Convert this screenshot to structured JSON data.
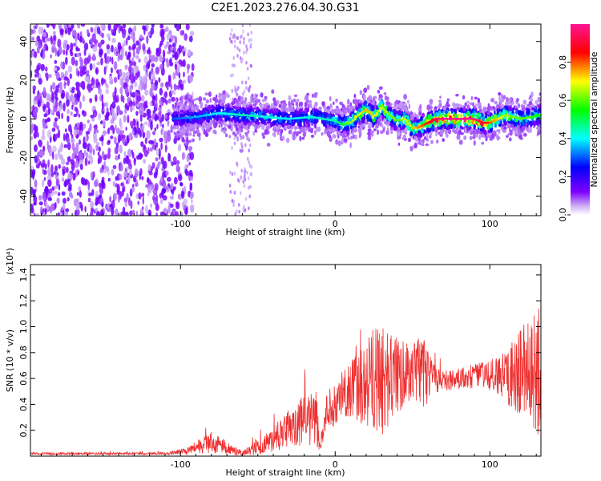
{
  "figure": {
    "title": "C2E1.2023.276.04.30.G31"
  },
  "chart_data": [
    {
      "type": "heatmap",
      "title": "C2E1.2023.276.04.30.G31",
      "xlabel": "Height of straight line (km)",
      "ylabel": "Frequency (Hz)",
      "xlim": [
        -197,
        133
      ],
      "ylim": [
        -50,
        49
      ],
      "xticks": [
        -100,
        0,
        100
      ],
      "yticks": [
        -40,
        -20,
        0,
        20,
        40
      ],
      "grid": false,
      "colorbar": {
        "label": "Normalized spectral amplitude",
        "range": [
          0.0,
          1.0
        ],
        "ticks": [
          0.0,
          0.2,
          0.4,
          0.6,
          0.8
        ],
        "colormap": [
          "#ffffff",
          "#7f00ff",
          "#0000ff",
          "#00ffff",
          "#00ff00",
          "#ffff00",
          "#ff0000",
          "#ff1493"
        ]
      },
      "ridge_frequency": {
        "x": [
          -105,
          -90,
          -75,
          -60,
          -45,
          -30,
          -15,
          0,
          5,
          10,
          15,
          20,
          25,
          30,
          35,
          40,
          45,
          50,
          55,
          60,
          65,
          70,
          80,
          90,
          95,
          100,
          110,
          120,
          133
        ],
        "y": [
          0,
          1,
          3,
          2,
          1,
          0,
          1,
          -1,
          -3,
          -2,
          2,
          5,
          1,
          6,
          2,
          -1,
          0,
          -5,
          -4,
          -2,
          0,
          0,
          0,
          0,
          -2,
          -2,
          2,
          0,
          2
        ]
      },
      "band_strength": {
        "x": [
          -105,
          -75,
          -60,
          -30,
          0,
          10,
          20,
          40,
          60,
          70,
          90,
          100,
          110,
          133
        ],
        "v": [
          0.25,
          0.35,
          0.4,
          0.35,
          0.4,
          0.6,
          0.7,
          0.55,
          0.8,
          0.95,
          0.95,
          0.75,
          0.6,
          0.5
        ]
      },
      "noise_region_x": [
        -197,
        -100
      ]
    },
    {
      "type": "line",
      "title": "",
      "xlabel": "Height of straight line (km)",
      "ylabel": "SNR (10 * v/v)",
      "y_multiplier": "(x10⁴)",
      "xlim": [
        -197,
        133
      ],
      "ylim": [
        0,
        1.48
      ],
      "xticks": [
        -100,
        0,
        100
      ],
      "yticks": [
        0.2,
        0.4,
        0.6,
        0.8,
        1.0,
        1.2,
        1.4
      ],
      "grid": false,
      "series": [
        {
          "color": "#ee3030",
          "envelope": {
            "x": [
              -197,
              -110,
              -95,
              -85,
              -80,
              -70,
              -60,
              -50,
              -40,
              -30,
              -20,
              -12,
              -10,
              -5,
              0,
              5,
              10,
              15,
              20,
              25,
              30,
              40,
              50,
              55,
              60,
              65,
              70,
              80,
              90,
              100,
              110,
              120,
              125,
              130,
              133
            ],
            "base": [
              0.02,
              0.02,
              0.04,
              0.09,
              0.11,
              0.07,
              0.02,
              0.07,
              0.13,
              0.22,
              0.28,
              0.3,
              0.05,
              0.38,
              0.42,
              0.48,
              0.5,
              0.52,
              0.55,
              0.6,
              0.6,
              0.62,
              0.65,
              0.65,
              0.62,
              0.58,
              0.58,
              0.6,
              0.62,
              0.62,
              0.62,
              0.64,
              0.65,
              0.66,
              0.65
            ],
            "amp": [
              0.01,
              0.01,
              0.03,
              0.07,
              0.09,
              0.05,
              0.02,
              0.06,
              0.1,
              0.15,
              0.2,
              0.22,
              0.04,
              0.14,
              0.2,
              0.18,
              0.22,
              0.3,
              0.35,
              0.4,
              0.45,
              0.3,
              0.2,
              0.3,
              0.22,
              0.1,
              0.08,
              0.08,
              0.1,
              0.12,
              0.2,
              0.35,
              0.45,
              0.5,
              0.5
            ]
          }
        }
      ]
    }
  ]
}
